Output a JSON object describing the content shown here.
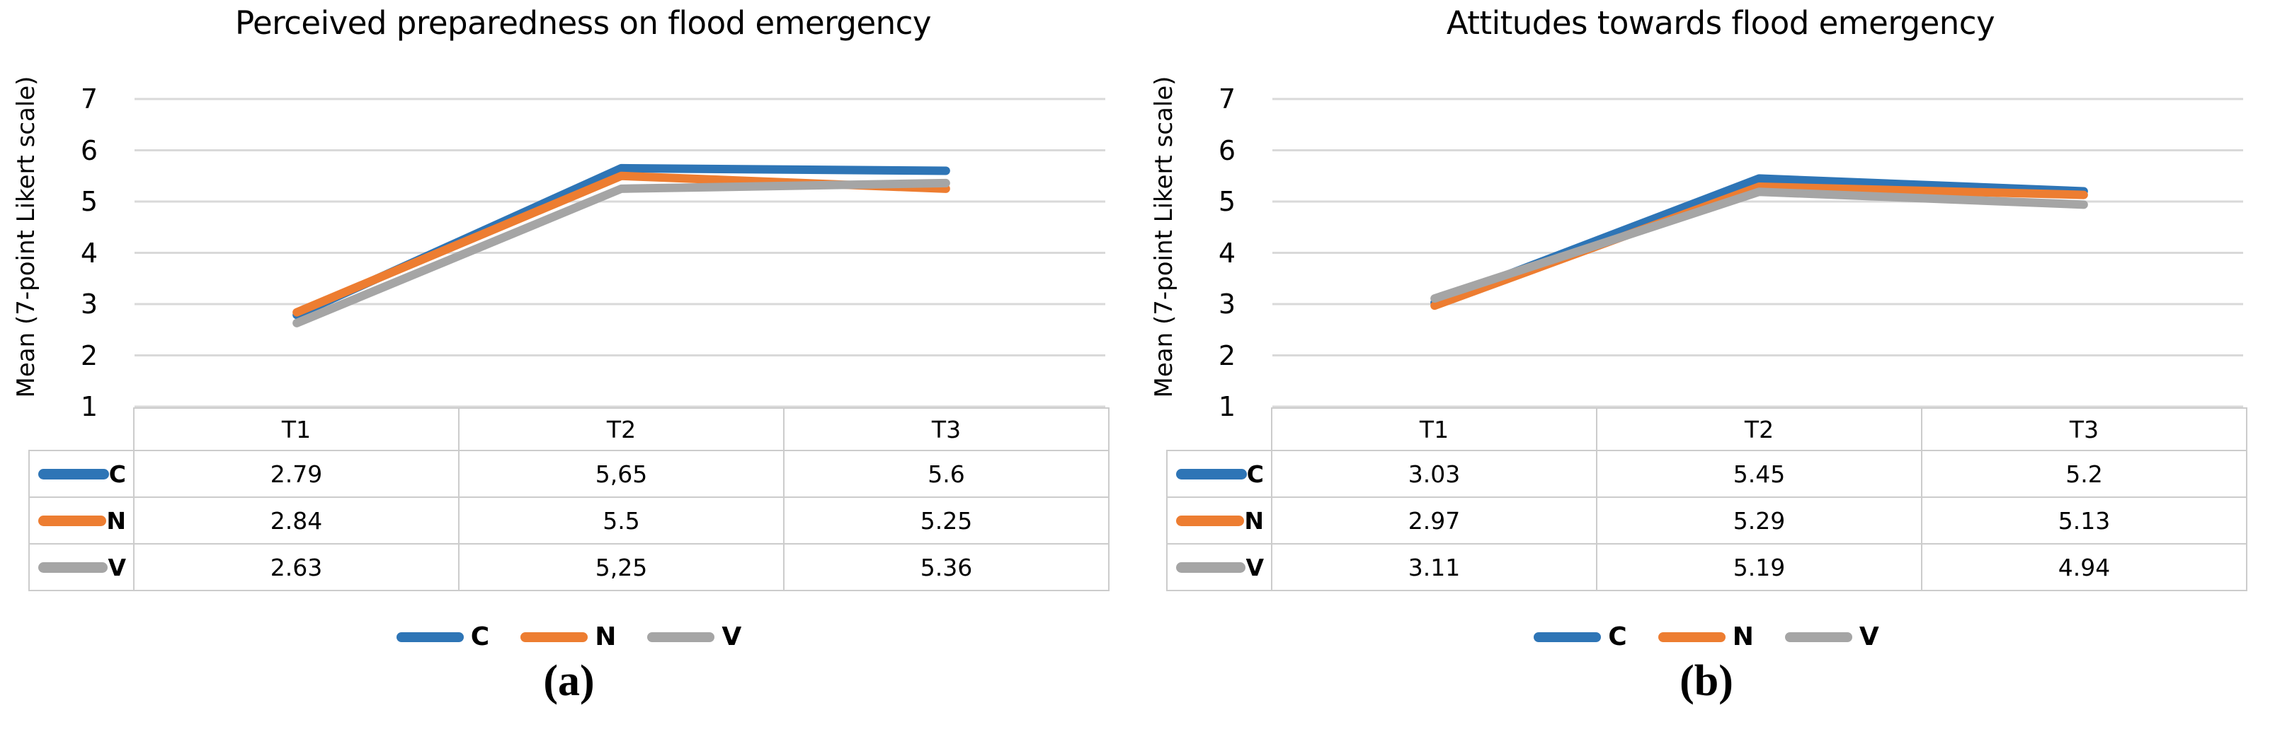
{
  "figures": [
    {
      "caption": "(a)",
      "chart_data": {
        "type": "line",
        "title": "Perceived preparedness on flood emergency",
        "ylabel": "Mean (7-point Likert scale)",
        "xlabel": "",
        "categories": [
          "T1",
          "T2",
          "T3"
        ],
        "series": [
          {
            "name": "C",
            "color": "#2E75B6",
            "values": [
              2.79,
              5.65,
              5.6
            ],
            "display_values": [
              "2.79",
              "5,65",
              "5.6"
            ]
          },
          {
            "name": "N",
            "color": "#ED7D31",
            "values": [
              2.84,
              5.5,
              5.25
            ],
            "display_values": [
              "2.84",
              "5.5",
              "5.25"
            ]
          },
          {
            "name": "V",
            "color": "#A5A5A5",
            "values": [
              2.63,
              5.25,
              5.36
            ],
            "display_values": [
              "2.63",
              "5,25",
              "5.36"
            ]
          }
        ],
        "ylim": [
          1,
          7
        ],
        "yticks": [
          1,
          2,
          3,
          4,
          5,
          6,
          7
        ],
        "grid": true,
        "legend": [
          "C",
          "N",
          "V"
        ],
        "legend_position": "bottom"
      }
    },
    {
      "caption": "(b)",
      "chart_data": {
        "type": "line",
        "title": "Attitudes towards flood emergency",
        "ylabel": "Mean (7-point Likert scale)",
        "xlabel": "",
        "categories": [
          "T1",
          "T2",
          "T3"
        ],
        "series": [
          {
            "name": "C",
            "color": "#2E75B6",
            "values": [
              3.03,
              5.45,
              5.2
            ],
            "display_values": [
              "3.03",
              "5.45",
              "5.2"
            ]
          },
          {
            "name": "N",
            "color": "#ED7D31",
            "values": [
              2.97,
              5.29,
              5.13
            ],
            "display_values": [
              "2.97",
              "5.29",
              "5.13"
            ]
          },
          {
            "name": "V",
            "color": "#A5A5A5",
            "values": [
              3.11,
              5.19,
              4.94
            ],
            "display_values": [
              "3.11",
              "5.19",
              "4.94"
            ]
          }
        ],
        "ylim": [
          1,
          7
        ],
        "yticks": [
          1,
          2,
          3,
          4,
          5,
          6,
          7
        ],
        "grid": true,
        "legend": [
          "C",
          "N",
          "V"
        ],
        "legend_position": "bottom"
      }
    }
  ],
  "colors": {
    "series_blue": "#2E75B6",
    "series_orange": "#ED7D31",
    "series_gray": "#A5A5A5",
    "gridline": "#D9D9D9",
    "table_border": "#CCCCCC",
    "text": "#000000"
  }
}
